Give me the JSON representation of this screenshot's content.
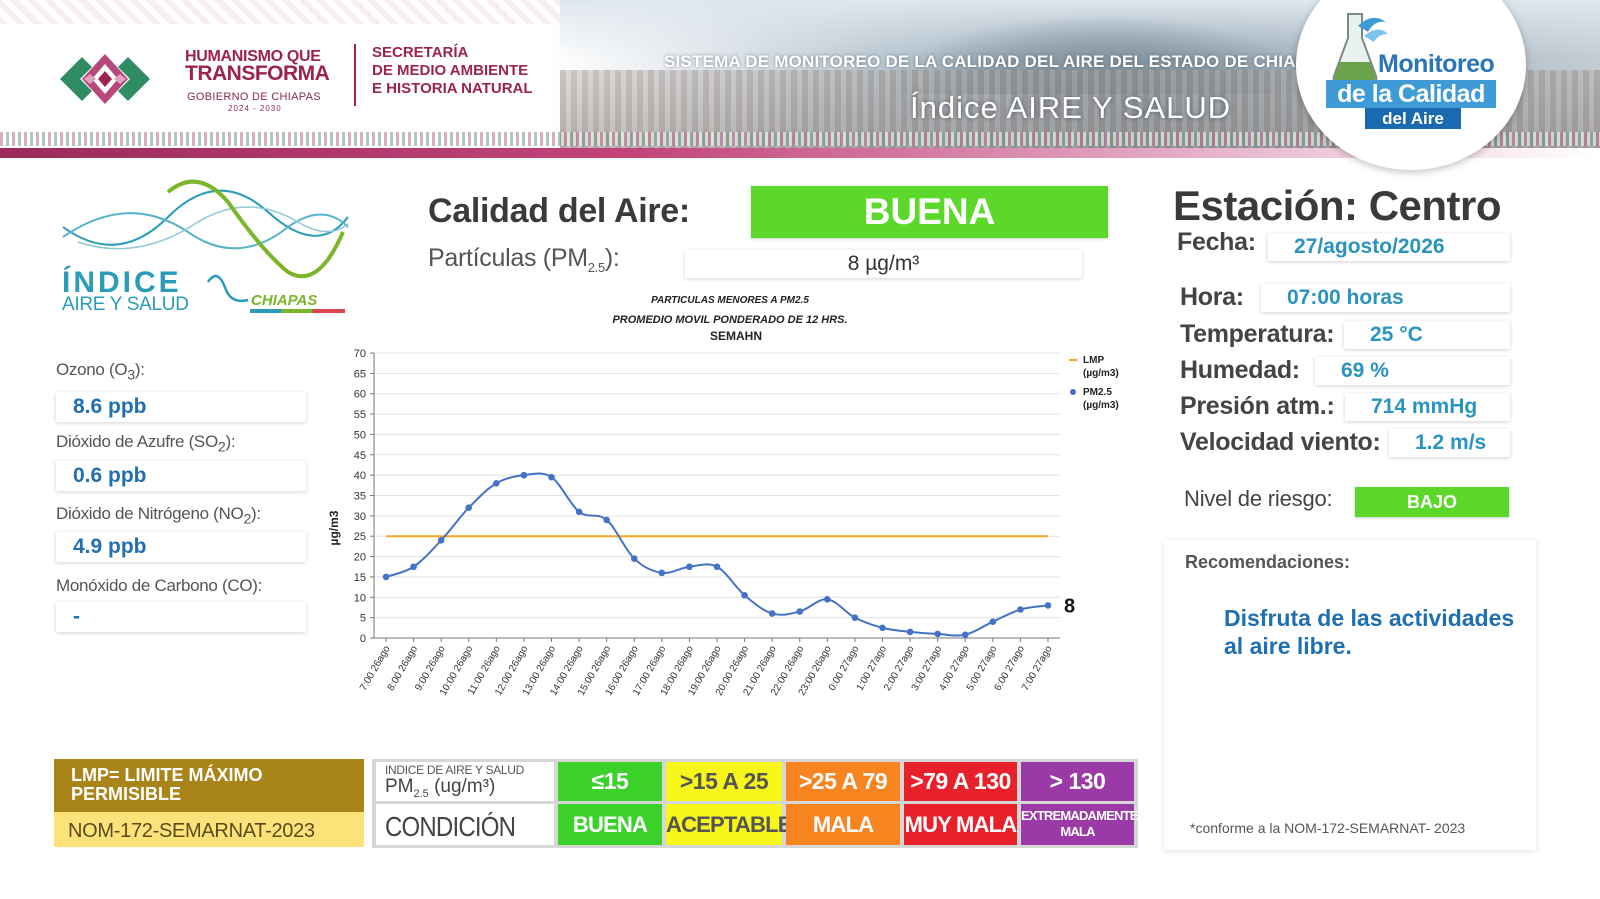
{
  "header": {
    "gov_line1": "HUMANISMO QUE",
    "gov_line2": "TRANSFORMA",
    "gov_line3": "GOBIERNO DE CHIAPAS",
    "gov_line4": "2024 - 2030",
    "secretaria_line1": "SECRETARÍA",
    "secretaria_line2": "DE MEDIO AMBIENTE",
    "secretaria_line3": "E HISTORIA NATURAL",
    "system_title": "SISTEMA DE MONITOREO DE LA CALIDAD DEL AIRE DEL ESTADO DE CHIAPAS",
    "index_title": "Índice AIRE Y SALUD",
    "badge_line1": "Monitoreo",
    "badge_line2": "de la Calidad",
    "badge_line3": "del Aire"
  },
  "indice_logo": {
    "word": "ÍNDICE",
    "sub": "AIRE Y SALUD",
    "region": "CHIAPAS"
  },
  "pollutants": [
    {
      "label_html": "Ozono (O<sub>3</sub>):",
      "value": "8.6 ppb"
    },
    {
      "label_html": "Dióxido de Azufre (SO<sub>2</sub>):",
      "value": "0.6 ppb"
    },
    {
      "label_html": "Dióxido de Nitrógeno (NO<sub>2</sub>):",
      "value": "4.9 ppb"
    },
    {
      "label_html": "Monóxido de Carbono (CO):",
      "value": "-"
    }
  ],
  "air_quality": {
    "title": "Calidad del Aire:",
    "status": "BUENA",
    "status_color": "#5cd82a",
    "pm_label_prefix": "Partículas (PM",
    "pm_label_sub": "2.5",
    "pm_label_suffix": "):",
    "pm_value": "8 µg/m³"
  },
  "chart_data": {
    "type": "line",
    "title": "PARTICULAS MENORES A PM2.5",
    "subtitle": "PROMEDIO MOVIL PONDERADO DE 12 HRS.",
    "source": "SEMAHN",
    "ylabel": "µg/m3",
    "ylim": [
      0,
      70
    ],
    "yticks": [
      0,
      5,
      10,
      15,
      20,
      25,
      30,
      35,
      40,
      45,
      50,
      55,
      60,
      65,
      70
    ],
    "grid": true,
    "legend_position": "top-right",
    "categories": [
      "7:00 26ago",
      "8:00 26ago",
      "9:00 26ago",
      "10:00 26ago",
      "11:00 26ago",
      "12:00 26ago",
      "13:00 26ago",
      "14:00 26ago",
      "15:00 26ago",
      "16:00 26ago",
      "17:00 26ago",
      "18:00 26ago",
      "19:00 26ago",
      "20:00 26ago",
      "21:00 26ago",
      "22:00 26ago",
      "23:00 26ago",
      "0:00 27ago",
      "1:00 27ago",
      "2:00 27ago",
      "3:00 27ago",
      "4:00 27ago",
      "5:00 27ago",
      "6:00 27ago",
      "7:00 27ago"
    ],
    "series": [
      {
        "name": "LMP (µg/m3)",
        "color": "#f5a623",
        "values": [
          25,
          25,
          25,
          25,
          25,
          25,
          25,
          25,
          25,
          25,
          25,
          25,
          25,
          25,
          25,
          25,
          25,
          25,
          25,
          25,
          25,
          25,
          25,
          25,
          25
        ]
      },
      {
        "name": "PM2.5 (µg/m3)",
        "color": "#4472c4",
        "values": [
          15,
          17.5,
          24,
          32,
          38,
          40,
          39.5,
          31,
          29,
          19.5,
          16,
          17.5,
          17.5,
          10.5,
          6,
          6.5,
          9.5,
          5,
          2.5,
          1.5,
          1,
          0.8,
          4,
          7,
          8
        ]
      }
    ],
    "last_value_label": "8"
  },
  "station": {
    "title": "Estación: Centro",
    "fields": [
      {
        "label": "Fecha:",
        "value": "27/agosto/2026"
      },
      {
        "label": "Hora:",
        "value": "07:00 horas"
      },
      {
        "label": "Temperatura:",
        "value": "25 °C"
      },
      {
        "label": "Humedad:",
        "value": "69 %"
      },
      {
        "label": "Presión atm.:",
        "value": "714 mmHg"
      },
      {
        "label": "Velocidad viento:",
        "value": "1.2 m/s"
      }
    ],
    "risk_label": "Nivel de riesgo:",
    "risk_value": "BAJO",
    "risk_color": "#5cd82a",
    "recommendations_title": "Recomendaciones:",
    "recommendation": "Disfruta de las actividades al aire libre.",
    "norm_note": "*conforme a la NOM-172-SEMARNAT- 2023"
  },
  "legend": {
    "lmp_line1": "LMP= LIMITE MÁXIMO",
    "lmp_line2": "PERMISIBLE",
    "norm": "NOM-172-SEMARNAT-2023",
    "header_line1": "INDICE DE AIRE Y SALUD",
    "header_line2_prefix": "PM",
    "header_line2_sub": "2.5",
    "header_line2_suffix": " (ug/m³)",
    "condition_label": "CONDICIÓN",
    "categories": [
      {
        "range": "≤15",
        "condition": "BUENA",
        "color": "#3bd12a",
        "text_color": "#ffffff"
      },
      {
        "range": ">15 A 25",
        "condition": "ACEPTABLE",
        "color": "#f6f61b",
        "text_color": "#555555"
      },
      {
        "range": ">25 A 79",
        "condition": "MALA",
        "color": "#f7841f",
        "text_color": "#ffffff"
      },
      {
        "range": ">79 A 130",
        "condition": "MUY MALA",
        "color": "#e8202a",
        "text_color": "#ffffff"
      },
      {
        "range": "> 130",
        "condition": "EXTREMADAMENTE MALA",
        "color": "#9b3aa6",
        "text_color": "#ffffff"
      }
    ]
  }
}
